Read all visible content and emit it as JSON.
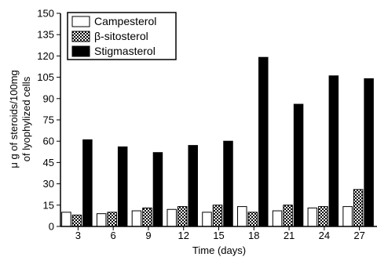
{
  "chart_data": {
    "type": "bar",
    "categories": [
      "3",
      "6",
      "9",
      "12",
      "15",
      "18",
      "21",
      "24",
      "27"
    ],
    "series": [
      {
        "name": "Campesterol",
        "values": [
          10,
          9,
          11,
          12,
          10,
          14,
          11,
          13,
          14
        ],
        "fill": "white"
      },
      {
        "name": "β-sitosterol",
        "values": [
          8,
          10,
          13,
          14,
          15,
          10,
          15,
          14,
          26
        ],
        "fill": "checker"
      },
      {
        "name": "Stigmasterol",
        "values": [
          61,
          56,
          52,
          57,
          60,
          119,
          86,
          106,
          104
        ],
        "fill": "black"
      }
    ],
    "xlabel": "Time (days)",
    "ylabel_lines": [
      "μ g of steroids/100mg",
      "of lyophylized cells"
    ],
    "ylim": [
      0,
      150
    ],
    "yticks": [
      "0",
      "15",
      "30",
      "45",
      "60",
      "75",
      "90",
      "105",
      "120",
      "135",
      "150"
    ],
    "legend": {
      "position": "top-left",
      "entries": [
        "Campesterol",
        "β-sitosterol",
        "Stigmasterol"
      ]
    },
    "grid": false
  }
}
